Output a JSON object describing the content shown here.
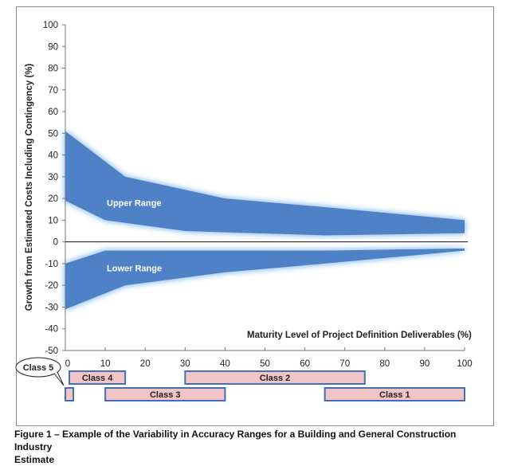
{
  "chart_data": {
    "type": "area",
    "title": "",
    "xlabel": "Maturity Level of Project Definition Deliverables (%)",
    "ylabel": "Growth from Estimated Costs Including Contingency (%)",
    "xlim": [
      0,
      100
    ],
    "ylim": [
      -50,
      100
    ],
    "xticks": [
      0,
      10,
      20,
      30,
      40,
      50,
      60,
      70,
      80,
      90,
      100
    ],
    "yticks": [
      100,
      90,
      80,
      70,
      60,
      50,
      40,
      30,
      20,
      10,
      0,
      -10,
      -20,
      -30,
      -40,
      -50
    ],
    "grid": false,
    "zero_line": true,
    "series": [
      {
        "name": "Upper Range",
        "color": "#4f81c7",
        "upper": [
          [
            0,
            51
          ],
          [
            15,
            30
          ],
          [
            40,
            20
          ],
          [
            65,
            16
          ],
          [
            100,
            10
          ]
        ],
        "lower": [
          [
            0,
            19
          ],
          [
            10,
            10
          ],
          [
            30,
            5
          ],
          [
            65,
            3
          ],
          [
            100,
            4
          ]
        ]
      },
      {
        "name": "Lower Range",
        "color": "#4f81c7",
        "upper": [
          [
            0,
            -10
          ],
          [
            10,
            -4
          ],
          [
            40,
            -4
          ],
          [
            65,
            -4
          ],
          [
            100,
            -3
          ]
        ],
        "lower": [
          [
            0,
            -31
          ],
          [
            15,
            -20
          ],
          [
            40,
            -14
          ],
          [
            65,
            -10
          ],
          [
            100,
            -4
          ]
        ]
      }
    ],
    "classes": [
      {
        "name": "Class 5",
        "start": 0,
        "end": 2,
        "row": 2,
        "callout": true
      },
      {
        "name": "Class 4",
        "start": 1,
        "end": 15,
        "row": 1
      },
      {
        "name": "Class 3",
        "start": 10,
        "end": 40,
        "row": 2
      },
      {
        "name": "Class 2",
        "start": 30,
        "end": 75,
        "row": 1
      },
      {
        "name": "Class 1",
        "start": 65,
        "end": 100,
        "row": 2
      }
    ],
    "class_fill": "#f2c4c6",
    "class_border": "#3f70b8"
  },
  "caption": {
    "line1": "Figure 1 – Example of the Variability in Accuracy Ranges for a Building and General Construction Industry",
    "line2": "Estimate"
  }
}
